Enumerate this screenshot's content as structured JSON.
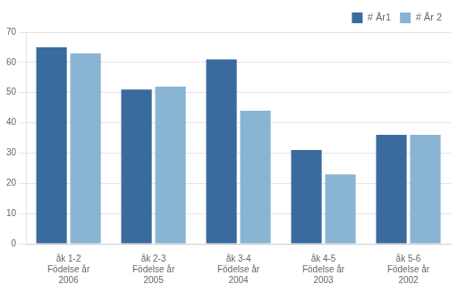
{
  "chart_data": {
    "type": "bar",
    "categories": [
      "åk 1-2\nFödelse år\n2006",
      "åk 2-3\nFödelse år\n2005",
      "åk 3-4\nFödelse år\n2004",
      "åk 4-5\nFödelse år\n2003",
      "åk 5-6\nFödelse år\n2002"
    ],
    "series": [
      {
        "name": "# År1",
        "color": "#3A6B9F",
        "values": [
          65,
          51,
          61,
          31,
          36
        ]
      },
      {
        "name": "# År 2",
        "color": "#8AB4D4",
        "values": [
          63,
          52,
          44,
          23,
          36
        ]
      }
    ],
    "ylim": [
      0,
      70
    ],
    "yticks": [
      0,
      10,
      20,
      30,
      40,
      50,
      60,
      70
    ],
    "grid": true,
    "legend": "upper right"
  }
}
